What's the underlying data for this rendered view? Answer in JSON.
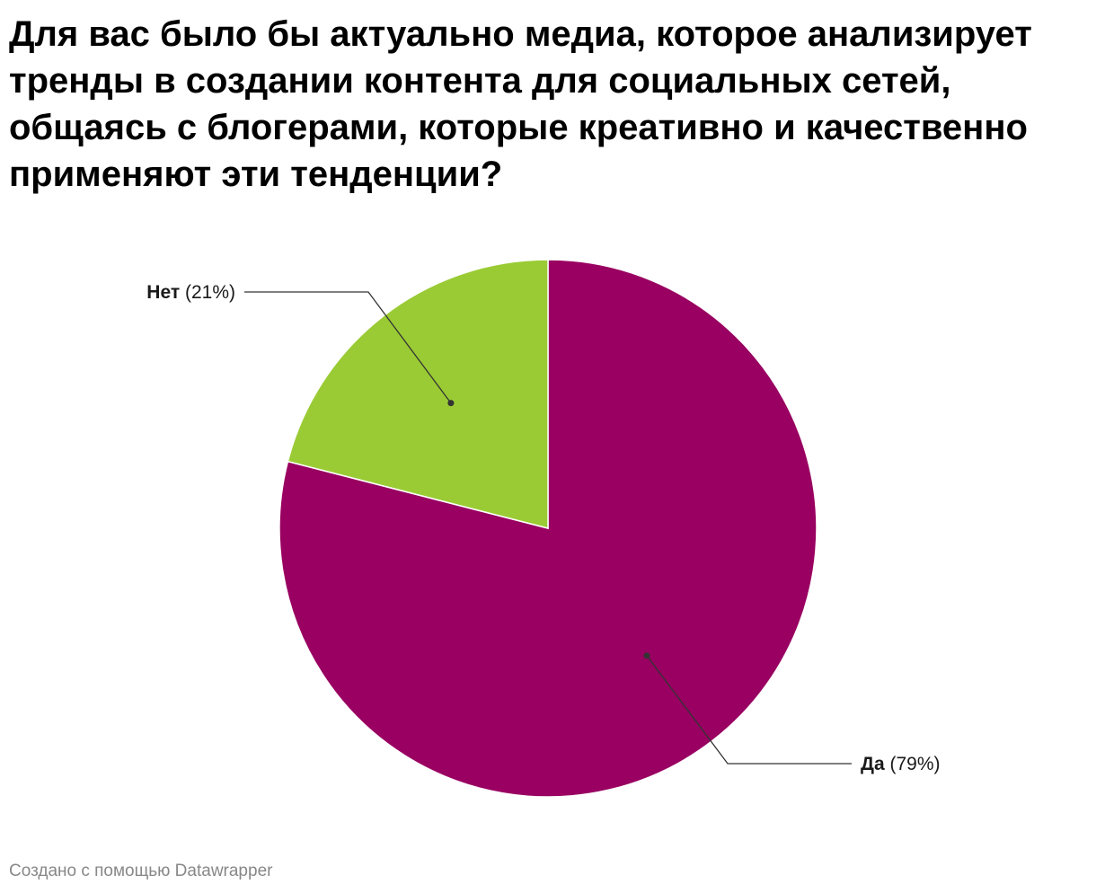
{
  "chart_data": {
    "type": "pie",
    "title": "Для вас было бы актуально медиа, которое анализирует тренды в создании контента для социальных сетей, общаясь с блогерами, которые креативно и качественно применяют эти тенденции?",
    "categories": [
      "Да",
      "Нет"
    ],
    "values": [
      79,
      21
    ],
    "value_labels": [
      "(79%)",
      "(21%)"
    ],
    "colors": [
      "#990061",
      "#9acb34"
    ],
    "start": "12 o'clock",
    "direction": "clockwise",
    "legend": "none"
  },
  "footer": {
    "credit": "Создано с помощью Datawrapper"
  }
}
